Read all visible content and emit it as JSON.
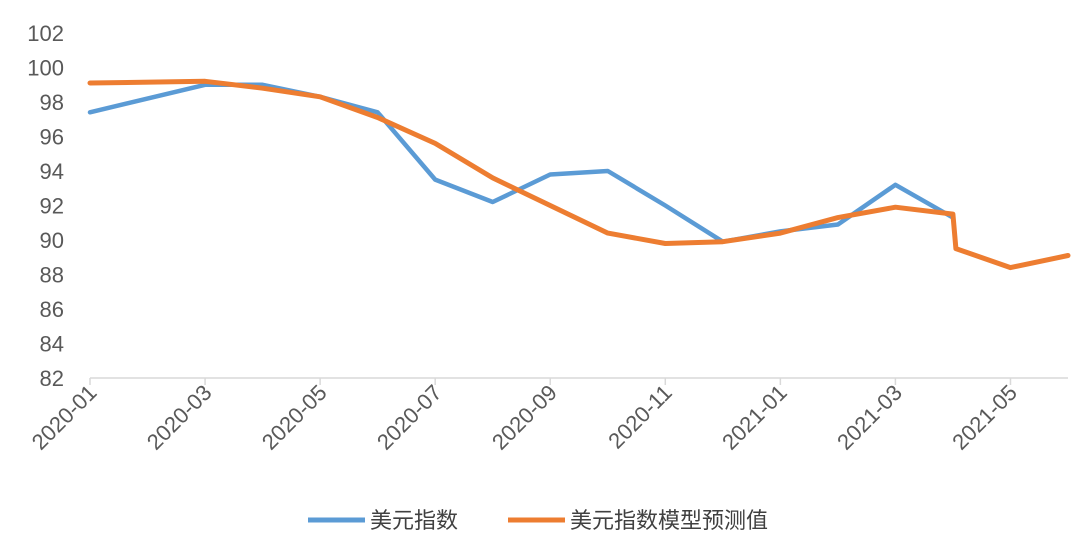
{
  "chart_data": {
    "type": "line",
    "title": "",
    "xlabel": "",
    "ylabel": "",
    "ylim": [
      82,
      102
    ],
    "yticks": [
      82,
      84,
      86,
      88,
      90,
      92,
      94,
      96,
      98,
      100,
      102
    ],
    "xlim": [
      "2020-01",
      "2021-06"
    ],
    "xtick_labels": [
      "2020-01",
      "2020-03",
      "2020-05",
      "2020-07",
      "2020-09",
      "2020-11",
      "2021-01",
      "2021-03",
      "2021-05"
    ],
    "legend_position": "bottom",
    "grid": false,
    "series": [
      {
        "name": "美元指数",
        "color": "#5B9BD5",
        "points": [
          {
            "x": "2020-01",
            "y": 97.4
          },
          {
            "x": "2020-03",
            "y": 99.0
          },
          {
            "x": "2020-04",
            "y": 99.0
          },
          {
            "x": "2020-05",
            "y": 98.3
          },
          {
            "x": "2020-06",
            "y": 97.4
          },
          {
            "x": "2020-07",
            "y": 93.5
          },
          {
            "x": "2020-08",
            "y": 92.2
          },
          {
            "x": "2020-09",
            "y": 93.8
          },
          {
            "x": "2020-10",
            "y": 94.0
          },
          {
            "x": "2020-11",
            "y": 92.0
          },
          {
            "x": "2020-12",
            "y": 89.9
          },
          {
            "x": "2021-01",
            "y": 90.5
          },
          {
            "x": "2021-02",
            "y": 90.9
          },
          {
            "x": "2021-03",
            "y": 93.2
          },
          {
            "x": "2021-04",
            "y": 91.3
          }
        ]
      },
      {
        "name": "美元指数模型预测值",
        "color": "#ED7D31",
        "points": [
          {
            "x": "2020-01",
            "y": 99.1
          },
          {
            "x": "2020-03",
            "y": 99.2
          },
          {
            "x": "2020-04",
            "y": 98.8
          },
          {
            "x": "2020-05",
            "y": 98.3
          },
          {
            "x": "2020-06",
            "y": 97.1
          },
          {
            "x": "2020-07",
            "y": 95.6
          },
          {
            "x": "2020-08",
            "y": 93.6
          },
          {
            "x": "2020-09",
            "y": 92.0
          },
          {
            "x": "2020-10",
            "y": 90.4
          },
          {
            "x": "2020-11",
            "y": 89.8
          },
          {
            "x": "2020-12",
            "y": 89.9
          },
          {
            "x": "2021-01",
            "y": 90.4
          },
          {
            "x": "2021-02",
            "y": 91.3
          },
          {
            "x": "2021-03",
            "y": 91.9
          },
          {
            "x": "2021-04",
            "y": 91.5
          },
          {
            "x": "2021-04",
            "y": 89.5
          },
          {
            "x": "2021-05",
            "y": 88.4
          },
          {
            "x": "2021-06",
            "y": 89.1
          }
        ]
      }
    ]
  }
}
